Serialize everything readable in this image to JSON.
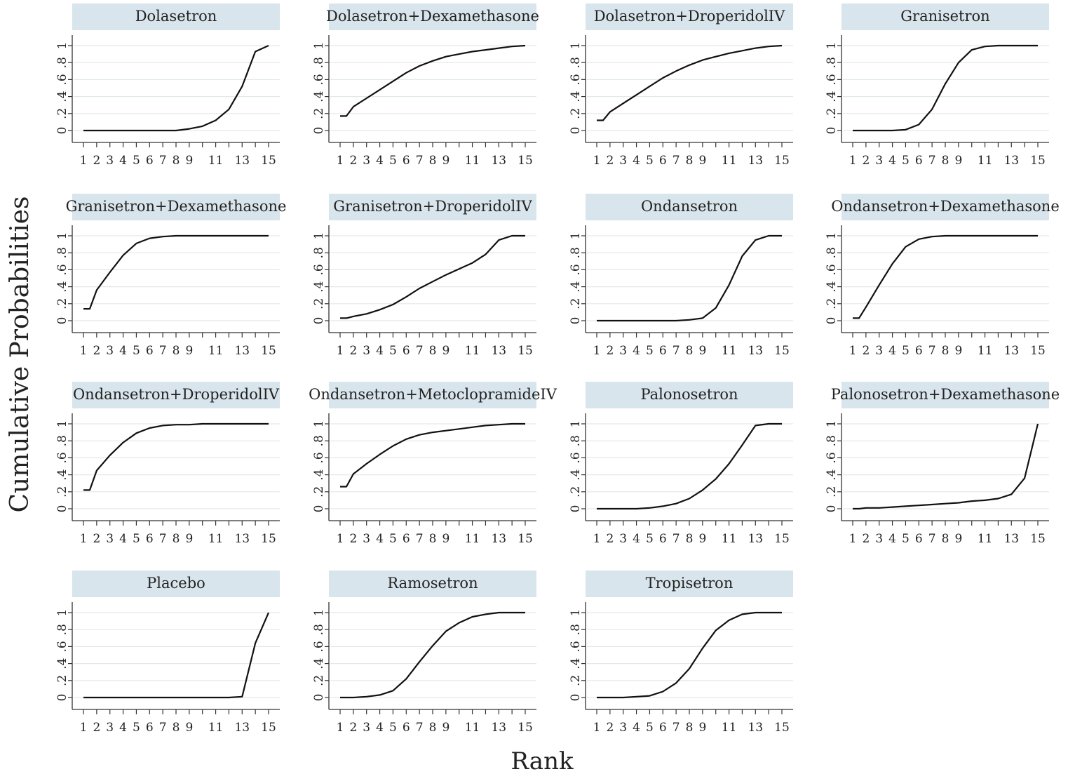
{
  "ylabel": "Cumulative Probabilities",
  "xlabel": "Rank",
  "colors": {
    "strip": "#d9e5ec",
    "line": "#111111",
    "grid": "#e3e8ec",
    "axis": "#333333"
  },
  "chart_data": {
    "type": "line",
    "xlabel": "Rank",
    "ylabel": "Cumulative Probabilities",
    "xlim": [
      1,
      15
    ],
    "ylim": [
      0,
      1
    ],
    "x_ticks": [
      "1",
      "2",
      "3",
      "4",
      "5",
      "6",
      "7",
      "8",
      "9",
      "11",
      "13",
      "15"
    ],
    "y_ticks": [
      "0",
      ".2",
      ".4",
      ".6",
      ".8",
      "1"
    ],
    "grid": true,
    "x": [
      1,
      2,
      3,
      4,
      5,
      6,
      7,
      8,
      9,
      10,
      11,
      12,
      13,
      14,
      15
    ],
    "panels": [
      {
        "name": "Dolasetron",
        "values": [
          0.0,
          0.0,
          0.0,
          0.0,
          0.0,
          0.0,
          0.0,
          0.0,
          0.02,
          0.05,
          0.12,
          0.25,
          0.52,
          0.93,
          1.0
        ]
      },
      {
        "name": "Dolasetron+Dexamethasone",
        "values": [
          0.17,
          0.28,
          0.38,
          0.48,
          0.58,
          0.68,
          0.76,
          0.82,
          0.87,
          0.9,
          0.93,
          0.95,
          0.97,
          0.99,
          1.0
        ]
      },
      {
        "name": "Dolasetron+DroperidolIV",
        "values": [
          0.12,
          0.22,
          0.32,
          0.42,
          0.52,
          0.62,
          0.7,
          0.77,
          0.83,
          0.87,
          0.91,
          0.94,
          0.97,
          0.99,
          1.0
        ]
      },
      {
        "name": "Granisetron",
        "values": [
          0.0,
          0.0,
          0.0,
          0.0,
          0.01,
          0.07,
          0.25,
          0.55,
          0.8,
          0.95,
          0.99,
          1.0,
          1.0,
          1.0,
          1.0
        ]
      },
      {
        "name": "Granisetron+Dexamethasone",
        "values": [
          0.14,
          0.36,
          0.57,
          0.77,
          0.91,
          0.97,
          0.99,
          1.0,
          1.0,
          1.0,
          1.0,
          1.0,
          1.0,
          1.0,
          1.0
        ]
      },
      {
        "name": "Granisetron+DroperidolIV",
        "values": [
          0.03,
          0.05,
          0.08,
          0.13,
          0.19,
          0.28,
          0.38,
          0.46,
          0.54,
          0.61,
          0.68,
          0.78,
          0.95,
          1.0,
          1.0
        ]
      },
      {
        "name": "Ondansetron",
        "values": [
          0.0,
          0.0,
          0.0,
          0.0,
          0.0,
          0.0,
          0.0,
          0.01,
          0.03,
          0.15,
          0.42,
          0.76,
          0.95,
          1.0,
          1.0
        ]
      },
      {
        "name": "Ondansetron+Dexamethasone",
        "values": [
          0.03,
          0.16,
          0.42,
          0.67,
          0.87,
          0.96,
          0.99,
          1.0,
          1.0,
          1.0,
          1.0,
          1.0,
          1.0,
          1.0,
          1.0
        ]
      },
      {
        "name": "Ondansetron+DroperidolIV",
        "values": [
          0.22,
          0.45,
          0.63,
          0.78,
          0.89,
          0.95,
          0.98,
          0.99,
          0.99,
          1.0,
          1.0,
          1.0,
          1.0,
          1.0,
          1.0
        ]
      },
      {
        "name": "Ondansetron+MetoclopramideIV",
        "values": [
          0.26,
          0.41,
          0.53,
          0.64,
          0.74,
          0.82,
          0.87,
          0.9,
          0.92,
          0.94,
          0.96,
          0.98,
          0.99,
          1.0,
          1.0
        ]
      },
      {
        "name": "Palonosetron",
        "values": [
          0.0,
          0.0,
          0.0,
          0.0,
          0.01,
          0.03,
          0.06,
          0.12,
          0.22,
          0.35,
          0.53,
          0.75,
          0.98,
          1.0,
          1.0
        ]
      },
      {
        "name": "Palonosetron+Dexamethasone",
        "values": [
          0.0,
          0.01,
          0.01,
          0.02,
          0.03,
          0.04,
          0.05,
          0.06,
          0.07,
          0.09,
          0.1,
          0.12,
          0.17,
          0.36,
          1.0
        ]
      },
      {
        "name": "Placebo",
        "values": [
          0.0,
          0.0,
          0.0,
          0.0,
          0.0,
          0.0,
          0.0,
          0.0,
          0.0,
          0.0,
          0.0,
          0.0,
          0.01,
          0.64,
          1.0
        ]
      },
      {
        "name": "Ramosetron",
        "values": [
          0.0,
          0.0,
          0.01,
          0.03,
          0.08,
          0.22,
          0.42,
          0.61,
          0.78,
          0.88,
          0.95,
          0.98,
          1.0,
          1.0,
          1.0
        ]
      },
      {
        "name": "Tropisetron",
        "values": [
          0.0,
          0.0,
          0.0,
          0.01,
          0.02,
          0.07,
          0.17,
          0.34,
          0.58,
          0.79,
          0.91,
          0.98,
          1.0,
          1.0,
          1.0
        ]
      }
    ]
  }
}
